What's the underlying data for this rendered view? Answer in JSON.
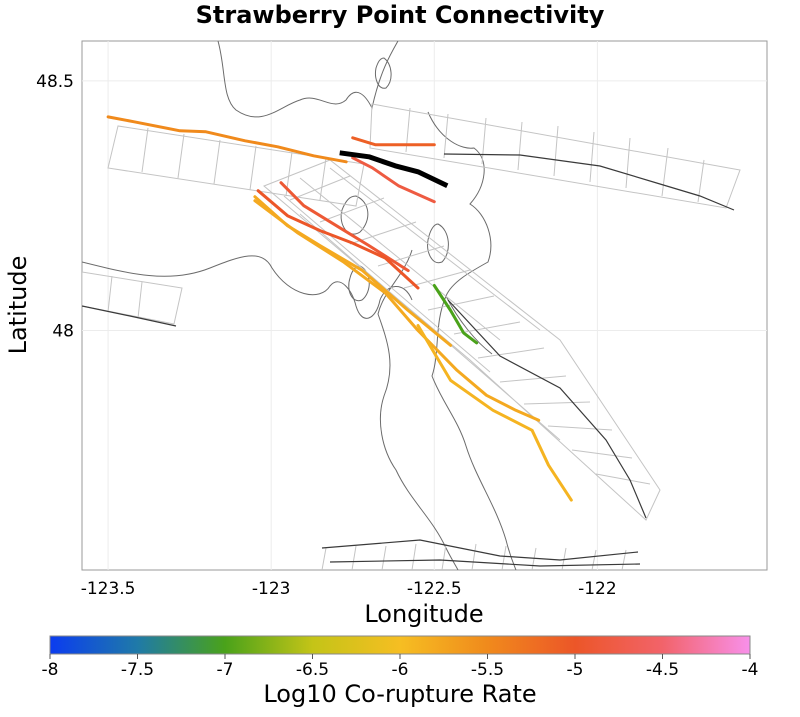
{
  "title": "Strawberry Point Connectivity",
  "map": {
    "xlabel": "Longitude",
    "ylabel": "Latitude",
    "x_ticks": [
      {
        "value": -123.5,
        "label": "-123.5"
      },
      {
        "value": -123,
        "label": "-123"
      },
      {
        "value": -122.5,
        "label": "-122.5"
      },
      {
        "value": -122,
        "label": "-122"
      }
    ],
    "y_ticks": [
      {
        "value": 48.5,
        "label": "48.5"
      },
      {
        "value": 48,
        "label": "48"
      }
    ],
    "xlim": [
      -123.58,
      -121.48
    ],
    "ylim": [
      47.52,
      48.58
    ]
  },
  "colorbar": {
    "label": "Log10 Co-rupture Rate",
    "range": [
      -8,
      -4
    ],
    "ticks": [
      {
        "value": -8,
        "label": "-8"
      },
      {
        "value": -7.5,
        "label": "-7.5"
      },
      {
        "value": -7,
        "label": "-7"
      },
      {
        "value": -6.5,
        "label": "-6.5"
      },
      {
        "value": -6,
        "label": "-6"
      },
      {
        "value": -5.5,
        "label": "-5.5"
      },
      {
        "value": -5,
        "label": "-5"
      },
      {
        "value": -4.5,
        "label": "-4.5"
      },
      {
        "value": -4,
        "label": "-4"
      }
    ],
    "stops": [
      "#0b3cf0",
      "#1f7aa8",
      "#4aa21a",
      "#c4c417",
      "#f6be22",
      "#f08a1c",
      "#ec5628",
      "#f2636a",
      "#f890ea"
    ]
  },
  "source_fault": {
    "name": "Strawberry Point",
    "color": "#000000",
    "trace": [
      [
        -122.79,
        48.356
      ],
      [
        -122.7,
        48.348
      ],
      [
        -122.62,
        48.33
      ],
      [
        -122.55,
        48.318
      ],
      [
        -122.46,
        48.29
      ]
    ]
  },
  "faults": [
    {
      "rate": -5.5,
      "trace": [
        [
          -123.5,
          48.428
        ],
        [
          -123.42,
          48.418
        ],
        [
          -123.28,
          48.4
        ],
        [
          -123.2,
          48.398
        ],
        [
          -123.08,
          48.38
        ],
        [
          -122.98,
          48.368
        ],
        [
          -122.87,
          48.35
        ],
        [
          -122.77,
          48.338
        ]
      ]
    },
    {
      "rate": -5.1,
      "trace": [
        [
          -122.75,
          48.386
        ],
        [
          -122.68,
          48.372
        ],
        [
          -122.6,
          48.372
        ],
        [
          -122.5,
          48.372
        ]
      ]
    },
    {
      "rate": -4.8,
      "trace": [
        [
          -122.75,
          48.346
        ],
        [
          -122.69,
          48.326
        ],
        [
          -122.61,
          48.29
        ],
        [
          -122.5,
          48.258
        ]
      ]
    },
    {
      "rate": -4.9,
      "trace": [
        [
          -122.97,
          48.296
        ],
        [
          -122.9,
          48.25
        ],
        [
          -122.8,
          48.21
        ],
        [
          -122.7,
          48.17
        ],
        [
          -122.58,
          48.12
        ]
      ]
    },
    {
      "rate": -5.0,
      "trace": [
        [
          -123.04,
          48.28
        ],
        [
          -122.95,
          48.23
        ],
        [
          -122.85,
          48.2
        ],
        [
          -122.75,
          48.175
        ],
        [
          -122.65,
          48.145
        ],
        [
          -122.55,
          48.085
        ]
      ]
    },
    {
      "rate": -5.8,
      "trace": [
        [
          -123.05,
          48.268
        ],
        [
          -122.95,
          48.21
        ],
        [
          -122.85,
          48.17
        ],
        [
          -122.72,
          48.12
        ],
        [
          -122.58,
          48.04
        ],
        [
          -122.45,
          47.97
        ]
      ]
    },
    {
      "rate": -7.0,
      "trace": [
        [
          -122.5,
          48.09
        ],
        [
          -122.45,
          48.04
        ],
        [
          -122.41,
          47.995
        ],
        [
          -122.37,
          47.975
        ]
      ]
    },
    {
      "rate": -5.8,
      "trace": [
        [
          -123.05,
          48.26
        ],
        [
          -122.92,
          48.196
        ],
        [
          -122.78,
          48.138
        ],
        [
          -122.65,
          48.075
        ],
        [
          -122.55,
          48.0
        ],
        [
          -122.43,
          47.92
        ],
        [
          -122.34,
          47.87
        ],
        [
          -122.25,
          47.84
        ],
        [
          -122.18,
          47.82
        ]
      ]
    },
    {
      "rate": -5.9,
      "trace": [
        [
          -122.55,
          48.01
        ],
        [
          -122.45,
          47.9
        ],
        [
          -122.32,
          47.84
        ],
        [
          -122.2,
          47.8
        ],
        [
          -122.15,
          47.73
        ],
        [
          -122.08,
          47.66
        ]
      ]
    }
  ]
}
